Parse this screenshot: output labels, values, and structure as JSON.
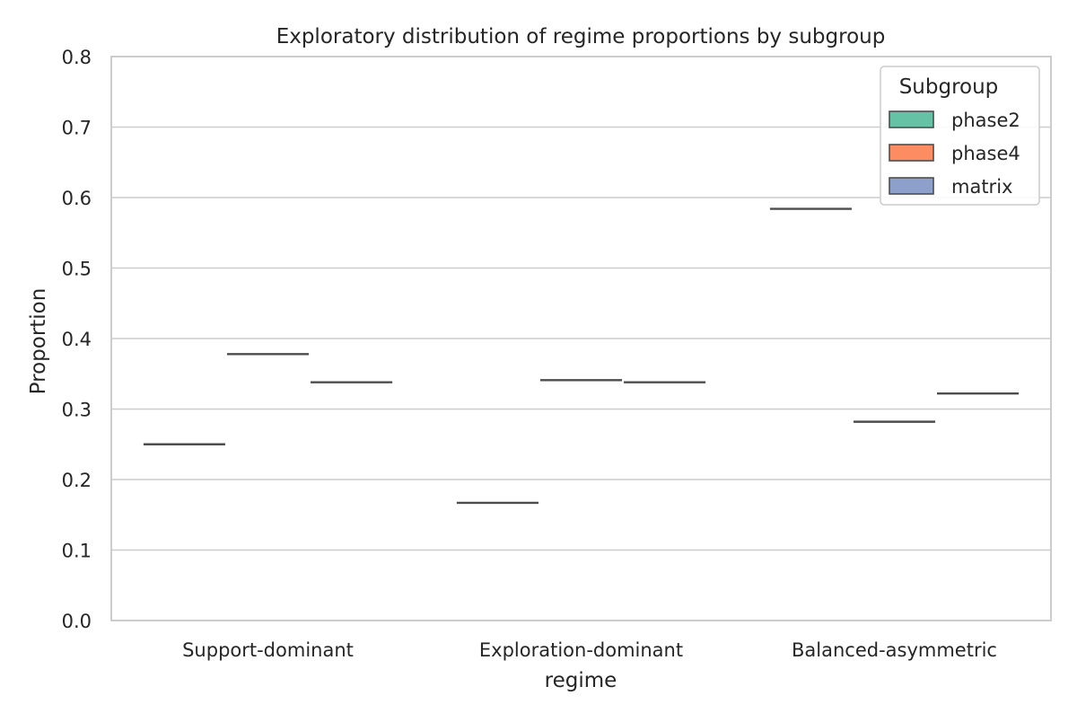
{
  "chart_data": {
    "type": "box",
    "title": "Exploratory distribution of regime proportions by subgroup",
    "xlabel": "regime",
    "ylabel": "Proportion",
    "ylim": [
      0.0,
      0.8
    ],
    "yticks": [
      "0.0",
      "0.1",
      "0.2",
      "0.3",
      "0.4",
      "0.5",
      "0.6",
      "0.7",
      "0.8"
    ],
    "categories": [
      "Support-dominant",
      "Exploration-dominant",
      "Balanced-asymmetric"
    ],
    "legend_title": "Subgroup",
    "legend_position": "top-right",
    "grid": "horizontal",
    "series": [
      {
        "name": "phase2",
        "color": "#66c2a5",
        "values": [
          0.25,
          0.167,
          0.584
        ]
      },
      {
        "name": "phase4",
        "color": "#fc8d62",
        "values": [
          0.378,
          0.341,
          0.282
        ]
      },
      {
        "name": "matrix",
        "color": "#8da0cb",
        "values": [
          0.338,
          0.338,
          0.322
        ]
      }
    ]
  }
}
